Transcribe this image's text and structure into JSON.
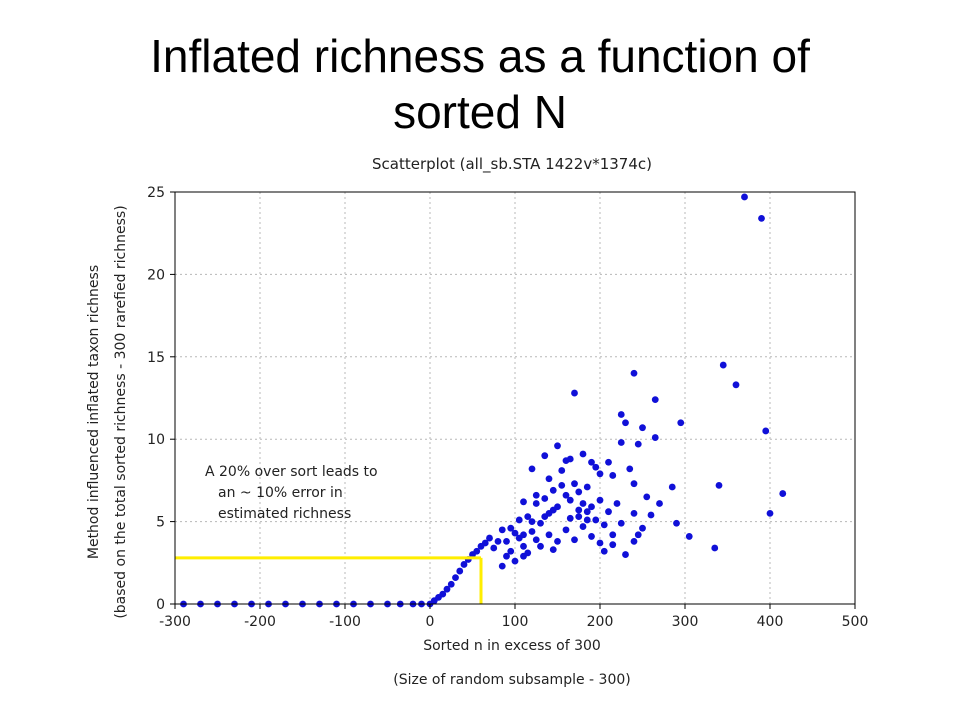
{
  "slide": {
    "title_line1": "Inflated richness as a function of",
    "title_line2": "sorted N"
  },
  "chart_data": {
    "type": "scatter",
    "title": "Scatterplot (all_sb.STA 1422v*1374c)",
    "xlabel": "Sorted n in excess of 300",
    "xlabel2": "(Size of random subsample - 300)",
    "ylabel": "Method influenced inflated taxon richness",
    "ylabel2": "(based on the total sorted richness - 300 rarefied richness)",
    "xlim": [
      -300,
      500
    ],
    "ylim": [
      0,
      25
    ],
    "xticks": [
      -300,
      -200,
      -100,
      0,
      100,
      200,
      300,
      400,
      500
    ],
    "yticks": [
      0,
      5,
      10,
      15,
      20,
      25
    ],
    "grid": true,
    "point_color": "#1010d8",
    "annotation": {
      "lines": [
        "A 20% over sort leads to",
        "an ~ 10% error in",
        "estimated richness"
      ],
      "line_color": "#ffee00",
      "guide_x": 60,
      "guide_y": 2.8
    },
    "points": [
      [
        -290,
        0
      ],
      [
        -270,
        0
      ],
      [
        -250,
        0
      ],
      [
        -230,
        0
      ],
      [
        -210,
        0
      ],
      [
        -190,
        0
      ],
      [
        -170,
        0
      ],
      [
        -150,
        0
      ],
      [
        -130,
        0
      ],
      [
        -110,
        0
      ],
      [
        -90,
        0
      ],
      [
        -70,
        0
      ],
      [
        -50,
        0
      ],
      [
        -35,
        0
      ],
      [
        -20,
        0
      ],
      [
        -10,
        0
      ],
      [
        0,
        0
      ],
      [
        5,
        0.2
      ],
      [
        10,
        0.4
      ],
      [
        15,
        0.6
      ],
      [
        20,
        0.9
      ],
      [
        25,
        1.2
      ],
      [
        30,
        1.6
      ],
      [
        35,
        2.0
      ],
      [
        40,
        2.4
      ],
      [
        45,
        2.7
      ],
      [
        50,
        3.0
      ],
      [
        55,
        3.2
      ],
      [
        60,
        3.5
      ],
      [
        65,
        3.7
      ],
      [
        70,
        4.0
      ],
      [
        75,
        3.4
      ],
      [
        80,
        3.8
      ],
      [
        85,
        4.5
      ],
      [
        90,
        3.8
      ],
      [
        95,
        4.6
      ],
      [
        100,
        4.3
      ],
      [
        105,
        5.1
      ],
      [
        110,
        4.2
      ],
      [
        115,
        5.3
      ],
      [
        120,
        5.0
      ],
      [
        125,
        6.1
      ],
      [
        130,
        4.9
      ],
      [
        135,
        6.4
      ],
      [
        140,
        5.5
      ],
      [
        145,
        6.9
      ],
      [
        150,
        5.9
      ],
      [
        155,
        7.2
      ],
      [
        160,
        6.6
      ],
      [
        165,
        6.3
      ],
      [
        170,
        7.3
      ],
      [
        175,
        6.8
      ],
      [
        180,
        6.1
      ],
      [
        185,
        7.1
      ],
      [
        190,
        5.9
      ],
      [
        200,
        6.3
      ],
      [
        210,
        5.6
      ],
      [
        220,
        6.1
      ],
      [
        225,
        4.9
      ],
      [
        240,
        5.5
      ],
      [
        250,
        4.6
      ],
      [
        260,
        5.4
      ],
      [
        95,
        3.2
      ],
      [
        110,
        3.5
      ],
      [
        125,
        3.9
      ],
      [
        140,
        4.2
      ],
      [
        150,
        3.8
      ],
      [
        160,
        4.5
      ],
      [
        170,
        3.9
      ],
      [
        180,
        4.7
      ],
      [
        190,
        4.1
      ],
      [
        200,
        3.7
      ],
      [
        205,
        3.2
      ],
      [
        215,
        3.6
      ],
      [
        230,
        3.0
      ],
      [
        245,
        4.2
      ],
      [
        240,
        3.8
      ],
      [
        120,
        8.2
      ],
      [
        135,
        9.0
      ],
      [
        150,
        9.6
      ],
      [
        165,
        8.8
      ],
      [
        180,
        9.1
      ],
      [
        195,
        8.3
      ],
      [
        210,
        8.6
      ],
      [
        225,
        9.8
      ],
      [
        230,
        11.0
      ],
      [
        245,
        9.7
      ],
      [
        235,
        8.2
      ],
      [
        200,
        7.9
      ],
      [
        190,
        8.6
      ],
      [
        170,
        12.8
      ],
      [
        225,
        11.5
      ],
      [
        240,
        14.0
      ],
      [
        250,
        10.7
      ],
      [
        265,
        12.4
      ],
      [
        265,
        10.1
      ],
      [
        285,
        7.1
      ],
      [
        290,
        4.9
      ],
      [
        295,
        11.0
      ],
      [
        305,
        4.1
      ],
      [
        335,
        3.4
      ],
      [
        340,
        7.2
      ],
      [
        345,
        14.5
      ],
      [
        360,
        13.3
      ],
      [
        370,
        24.7
      ],
      [
        390,
        23.4
      ],
      [
        395,
        10.5
      ],
      [
        400,
        5.5
      ],
      [
        415,
        6.7
      ],
      [
        110,
        6.2
      ],
      [
        125,
        6.6
      ],
      [
        140,
        7.6
      ],
      [
        155,
        8.1
      ],
      [
        160,
        8.7
      ],
      [
        175,
        5.3
      ],
      [
        185,
        5.6
      ],
      [
        195,
        5.1
      ],
      [
        205,
        4.8
      ],
      [
        215,
        4.2
      ],
      [
        255,
        6.5
      ],
      [
        270,
        6.1
      ],
      [
        240,
        7.3
      ],
      [
        215,
        7.8
      ],
      [
        85,
        2.3
      ],
      [
        90,
        2.9
      ],
      [
        100,
        2.6
      ],
      [
        110,
        2.9
      ],
      [
        115,
        3.1
      ],
      [
        130,
        3.5
      ],
      [
        145,
        3.3
      ],
      [
        165,
        5.2
      ],
      [
        175,
        5.7
      ],
      [
        185,
        5.1
      ],
      [
        145,
        5.7
      ],
      [
        135,
        5.3
      ],
      [
        105,
        4.0
      ],
      [
        120,
        4.4
      ]
    ]
  }
}
